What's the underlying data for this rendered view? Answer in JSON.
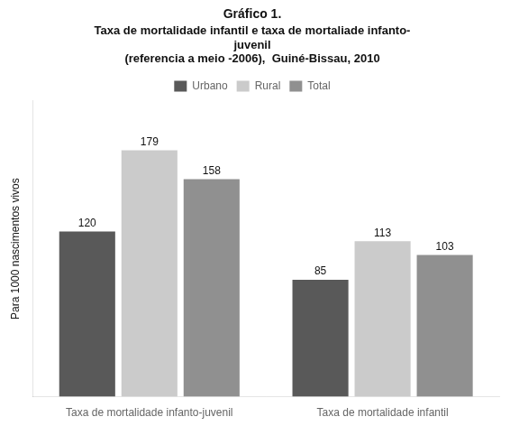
{
  "chart_data": {
    "type": "bar",
    "title": "Gráfico 1.",
    "subtitle": "Taxa de mortalidade infantil e taxa de mortaliade infanto-\njuvenil\n(referencia a meio -2006),  Guiné-Bissau, 2010",
    "categories": [
      "Taxa de mortalidade infanto-juvenil",
      "Taxa de mortalidade infantil"
    ],
    "series": [
      {
        "name": "Urbano",
        "color": "#595959",
        "values": [
          120,
          85
        ]
      },
      {
        "name": "Rural",
        "color": "#cbcbcb",
        "values": [
          179,
          113
        ]
      },
      {
        "name": "Total",
        "color": "#909090",
        "values": [
          158,
          103
        ]
      }
    ],
    "y_label": "Para 1000 nascimentos vivos",
    "ylim": [
      0,
      215
    ],
    "grid": false,
    "legend": "top",
    "data_labels": true,
    "tick_labels": "x"
  }
}
